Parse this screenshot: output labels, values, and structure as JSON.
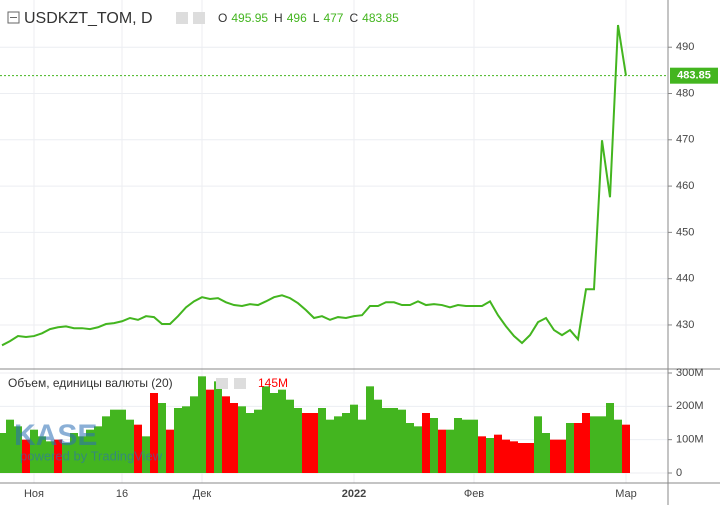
{
  "chart_data": [
    {
      "type": "line",
      "title": "USDKZT_TOM, D",
      "ohlc": [
        {
          "label": "O",
          "value": 495.95
        },
        {
          "label": "H",
          "value": 496.0
        },
        {
          "label": "L",
          "value": 477.0
        },
        {
          "label": "C",
          "value": 483.85
        }
      ],
      "watermark": "KASE",
      "watermark_sub": "powered by TradingView",
      "categories": [
        null,
        null,
        null,
        null,
        "Ноя",
        null,
        null,
        null,
        null,
        null,
        null,
        null,
        null,
        null,
        null,
        "16",
        null,
        null,
        null,
        null,
        null,
        null,
        null,
        null,
        null,
        "Дек",
        null,
        null,
        null,
        null,
        null,
        null,
        null,
        null,
        null,
        null,
        null,
        null,
        null,
        null,
        null,
        null,
        null,
        null,
        "2022",
        null,
        null,
        null,
        null,
        null,
        null,
        null,
        null,
        null,
        null,
        null,
        null,
        null,
        null,
        "Фев",
        null,
        null,
        null,
        null,
        null,
        null,
        null,
        null,
        null,
        null,
        null,
        null,
        null,
        null,
        null,
        null,
        null,
        null,
        "Мар"
      ],
      "series": [
        {
          "name": "USDKZT_TOM",
          "color": "#43b51f",
          "values": [
            425.6,
            426.5,
            427.6,
            427.4,
            427.6,
            428.2,
            429.1,
            429.5,
            429.7,
            429.3,
            429.3,
            429.1,
            429.5,
            430.2,
            430.4,
            430.8,
            431.5,
            431.1,
            431.9,
            431.7,
            430.2,
            430.2,
            431.9,
            433.8,
            435.1,
            436.0,
            435.6,
            435.8,
            434.9,
            434.3,
            434.1,
            434.5,
            434.3,
            435.1,
            436.0,
            436.4,
            435.8,
            434.7,
            433.2,
            431.5,
            431.9,
            431.1,
            431.7,
            431.5,
            431.9,
            432.1,
            434.1,
            434.1,
            434.9,
            434.9,
            434.3,
            434.3,
            435.1,
            434.3,
            434.5,
            434.3,
            433.8,
            434.3,
            434.1,
            434.1,
            434.1,
            435.1,
            432.1,
            429.7,
            427.6,
            426.1,
            427.8,
            430.6,
            431.5,
            428.9,
            427.8,
            428.9,
            426.9,
            437.7,
            437.7,
            469.9,
            457.6,
            494.8,
            483.85
          ]
        }
      ],
      "ylim": [
        420.7,
        500.2
      ],
      "yticks": [
        430,
        440,
        450,
        460,
        470,
        480,
        490
      ],
      "grid": true
    },
    {
      "type": "bar",
      "title": "Объем, единицы валюты (20)",
      "series": [
        {
          "name": "Объем",
          "color": "#43b51f",
          "bar_colors": [
            "#43b51f",
            "#43b51f",
            "#43b51f",
            "#ff0000",
            "#43b51f",
            "#43b51f",
            "#43b51f",
            "#ff0000",
            "#43b51f",
            "#43b51f",
            "#43b51f",
            "#43b51f",
            "#43b51f",
            "#43b51f",
            "#43b51f",
            "#43b51f",
            "#43b51f",
            "#ff0000",
            "#43b51f",
            "#ff0000",
            "#43b51f",
            "#ff0000",
            "#43b51f",
            "#43b51f",
            "#43b51f",
            "#43b51f",
            "#ff0000",
            "#43b51f",
            "#ff0000",
            "#ff0000",
            "#43b51f",
            "#43b51f",
            "#43b51f",
            "#43b51f",
            "#43b51f",
            "#43b51f",
            "#43b51f",
            "#43b51f",
            "#ff0000",
            "#ff0000",
            "#43b51f",
            "#43b51f",
            "#43b51f",
            "#43b51f",
            "#43b51f",
            "#43b51f",
            "#43b51f",
            "#43b51f",
            "#43b51f",
            "#43b51f",
            "#43b51f",
            "#43b51f",
            "#43b51f",
            "#ff0000",
            "#43b51f",
            "#ff0000",
            "#43b51f",
            "#43b51f",
            "#43b51f",
            "#43b51f",
            "#ff0000",
            "#43b51f",
            "#ff0000",
            "#ff0000",
            "#ff0000",
            "#ff0000",
            "#ff0000",
            "#43b51f",
            "#43b51f",
            "#ff0000",
            "#ff0000",
            "#43b51f",
            "#ff0000",
            "#ff0000",
            "#43b51f",
            "#43b51f",
            "#43b51f",
            "#43b51f",
            "#ff0000"
          ],
          "values": [
            120,
            160,
            140,
            100,
            130,
            110,
            95,
            100,
            90,
            120,
            110,
            130,
            140,
            170,
            190,
            190,
            160,
            145,
            110,
            240,
            210,
            130,
            195,
            200,
            230,
            290,
            250,
            275,
            230,
            210,
            200,
            180,
            190,
            260,
            240,
            250,
            220,
            195,
            180,
            180,
            195,
            160,
            170,
            180,
            205,
            160,
            260,
            220,
            195,
            195,
            190,
            150,
            140,
            180,
            165,
            130,
            130,
            165,
            160,
            160,
            110,
            105,
            115,
            100,
            95,
            90,
            90,
            170,
            120,
            100,
            100,
            150,
            150,
            180,
            170,
            170,
            210,
            160,
            145
          ],
          "value_labels": [
            null,
            null,
            null,
            null,
            null,
            null,
            null,
            null,
            null,
            null,
            null,
            null,
            null,
            null,
            null,
            null,
            null,
            null,
            null,
            null,
            null,
            null,
            null,
            null,
            null,
            null,
            null,
            null,
            null,
            null,
            null,
            null,
            null,
            null,
            null,
            null,
            null,
            null,
            null,
            null,
            null,
            null,
            null,
            null,
            null,
            null,
            null,
            null,
            null,
            null,
            null,
            null,
            null,
            null,
            null,
            null,
            null,
            null,
            null,
            null,
            null,
            null,
            null,
            null,
            null,
            null,
            null,
            null,
            null,
            null,
            null,
            null,
            null,
            null,
            null,
            null,
            null,
            null,
            "145M"
          ]
        }
      ],
      "ylim": [
        -30,
        309
      ],
      "yticks": [
        0,
        {
          "value": 100,
          "label": "100M"
        },
        {
          "value": 200,
          "label": "200M"
        },
        {
          "value": 300,
          "label": "300M"
        }
      ],
      "grid": true
    }
  ]
}
